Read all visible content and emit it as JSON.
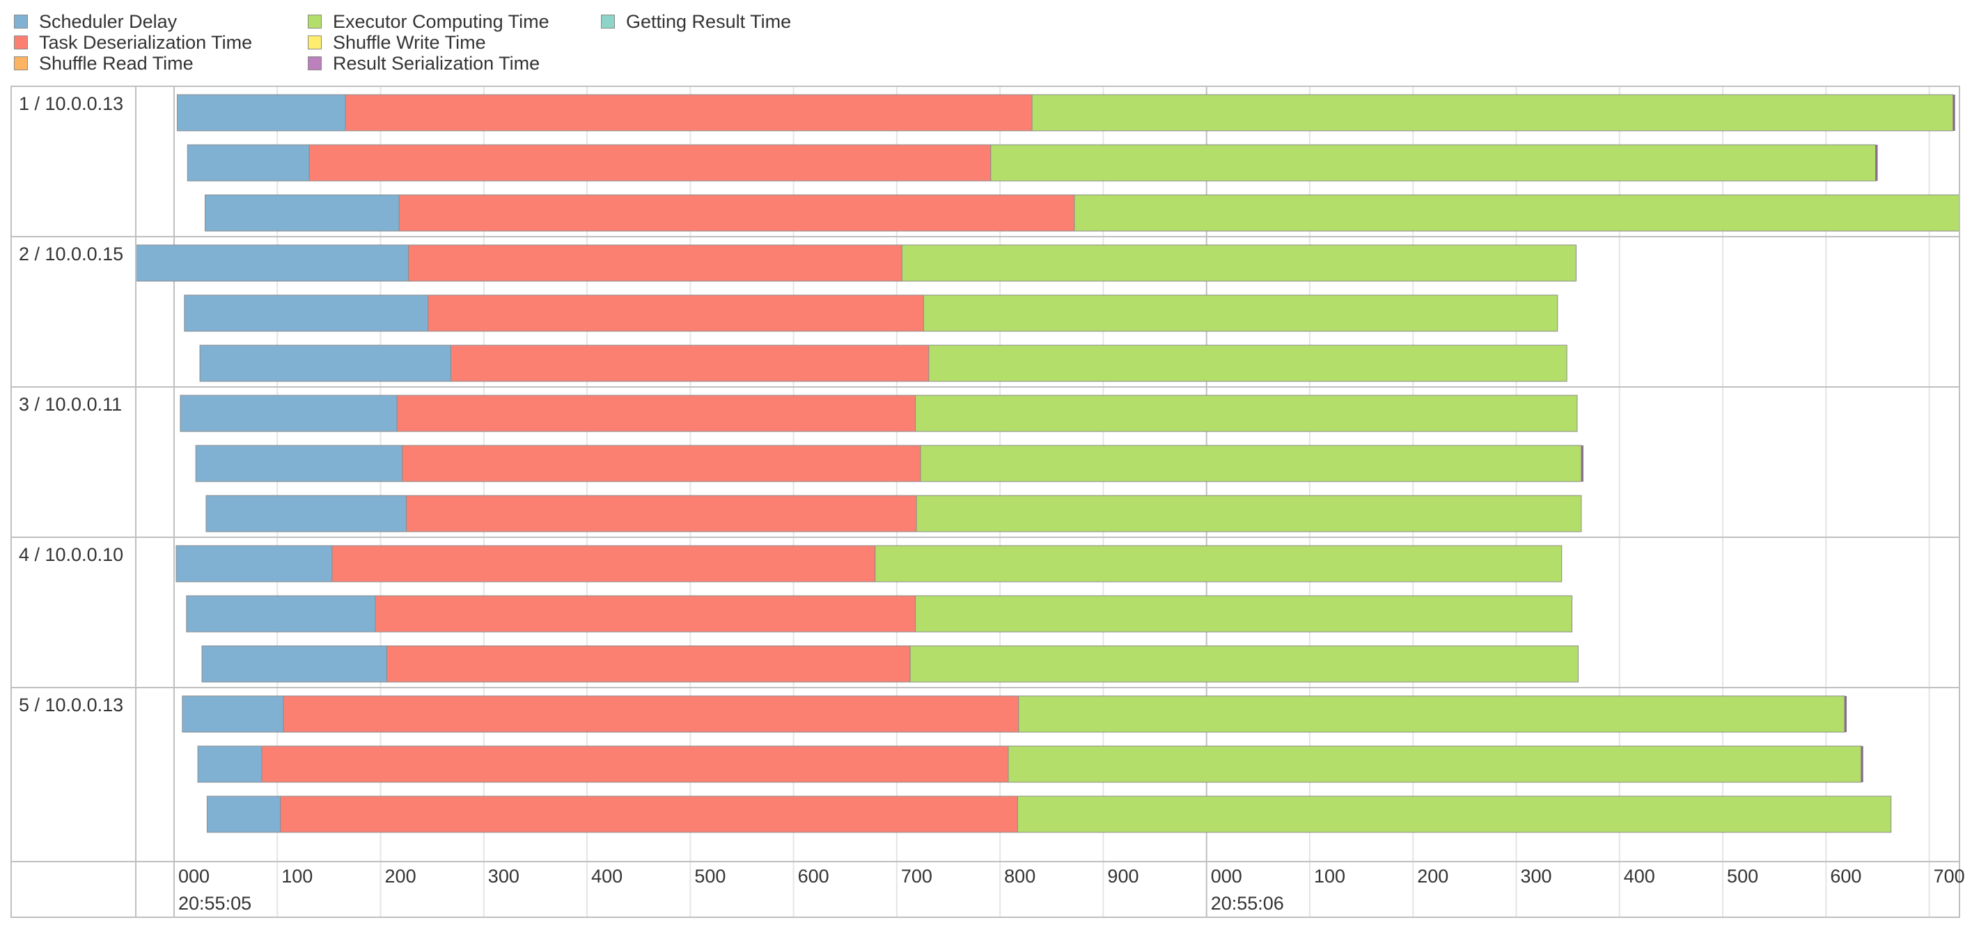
{
  "legend": [
    {
      "label": "Scheduler Delay",
      "color": "#80b1d3"
    },
    {
      "label": "Task Deserialization Time",
      "color": "#fb8072"
    },
    {
      "label": "Shuffle Read Time",
      "color": "#fdb462"
    },
    {
      "label": "Executor Computing Time",
      "color": "#b3de69"
    },
    {
      "label": "Shuffle Write Time",
      "color": "#ffed6f"
    },
    {
      "label": "Result Serialization Time",
      "color": "#bc80bd"
    },
    {
      "label": "Getting Result Time",
      "color": "#8dd3c7"
    }
  ],
  "chart_data": {
    "type": "timeline",
    "title": "",
    "xlabel": "",
    "ylabel": "",
    "x_range_ms": [
      -40,
      1720
    ],
    "tick_labels": [
      "000",
      "100",
      "200",
      "300",
      "400",
      "500",
      "600",
      "700",
      "800",
      "900",
      "000",
      "100",
      "200",
      "300",
      "400",
      "500",
      "600",
      "700"
    ],
    "major_labels": [
      {
        "text": "20:55:05",
        "ms": 0
      },
      {
        "text": "20:55:06",
        "ms": 1000
      }
    ],
    "units": "ms after 20:55:05.000",
    "groups": [
      {
        "label": "1 / 10.0.0.13",
        "tasks": [
          {
            "start": 3,
            "scheduler_delay": 163,
            "task_deserialization": 665,
            "executor_computing": 892,
            "result_serialization": 2
          },
          {
            "start": 13,
            "scheduler_delay": 118,
            "task_deserialization": 660,
            "executor_computing": 857,
            "result_serialization": 2
          },
          {
            "start": 30,
            "scheduler_delay": 188,
            "task_deserialization": 654,
            "executor_computing": 880,
            "result_serialization": 0
          }
        ]
      },
      {
        "label": "2 / 10.0.0.15",
        "tasks": [
          {
            "start": -40,
            "scheduler_delay": 267,
            "task_deserialization": 478,
            "executor_computing": 653,
            "result_serialization": 0
          },
          {
            "start": 10,
            "scheduler_delay": 236,
            "task_deserialization": 480,
            "executor_computing": 614,
            "result_serialization": 0
          },
          {
            "start": 25,
            "scheduler_delay": 243,
            "task_deserialization": 463,
            "executor_computing": 618,
            "result_serialization": 0
          }
        ]
      },
      {
        "label": "3 / 10.0.0.11",
        "tasks": [
          {
            "start": 6,
            "scheduler_delay": 210,
            "task_deserialization": 502,
            "executor_computing": 641,
            "result_serialization": 0
          },
          {
            "start": 21,
            "scheduler_delay": 200,
            "task_deserialization": 502,
            "executor_computing": 640,
            "result_serialization": 2
          },
          {
            "start": 31,
            "scheduler_delay": 194,
            "task_deserialization": 494,
            "executor_computing": 644,
            "result_serialization": 0
          }
        ]
      },
      {
        "label": "4 / 10.0.0.10",
        "tasks": [
          {
            "start": 2,
            "scheduler_delay": 151,
            "task_deserialization": 526,
            "executor_computing": 665,
            "result_serialization": 0
          },
          {
            "start": 12,
            "scheduler_delay": 183,
            "task_deserialization": 523,
            "executor_computing": 636,
            "result_serialization": 0
          },
          {
            "start": 27,
            "scheduler_delay": 179,
            "task_deserialization": 507,
            "executor_computing": 647,
            "result_serialization": 0
          }
        ]
      },
      {
        "label": "5 / 10.0.0.13",
        "tasks": [
          {
            "start": 8,
            "scheduler_delay": 98,
            "task_deserialization": 712,
            "executor_computing": 800,
            "result_serialization": 2
          },
          {
            "start": 23,
            "scheduler_delay": 62,
            "task_deserialization": 723,
            "executor_computing": 826,
            "result_serialization": 2
          },
          {
            "start": 32,
            "scheduler_delay": 71,
            "task_deserialization": 714,
            "executor_computing": 846,
            "result_serialization": 0
          }
        ]
      }
    ]
  }
}
